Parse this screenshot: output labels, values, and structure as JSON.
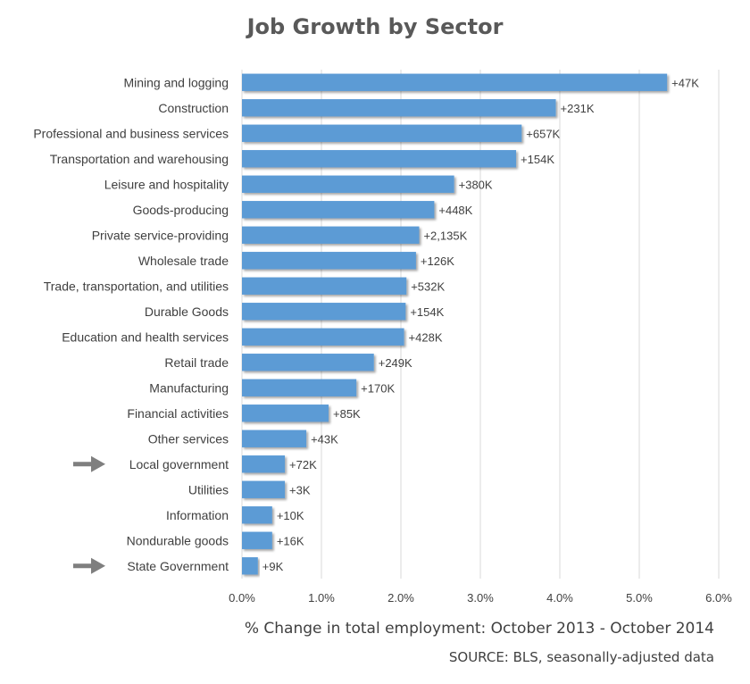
{
  "chart_data": {
    "type": "bar",
    "orientation": "horizontal",
    "title": "Job Growth by Sector",
    "xlabel": "% Change in total employment: October 2013 - October 2014",
    "source": "SOURCE: BLS, seasonally-adjusted data",
    "xlim": [
      0,
      6
    ],
    "xticks": [
      "0.0%",
      "1.0%",
      "2.0%",
      "3.0%",
      "4.0%",
      "5.0%",
      "6.0%"
    ],
    "grid": true,
    "bar_color": "#5b9bd5",
    "categories": [
      "Mining and logging",
      "Construction",
      "Professional and business services",
      "Transportation and warehousing",
      "Leisure and hospitality",
      "Goods-producing",
      "Private service-providing",
      "Wholesale trade",
      "Trade, transportation, and utilities",
      "Durable Goods",
      "Education and health services",
      "Retail trade",
      "Manufacturing",
      "Financial activities",
      "Other services",
      "Local government",
      "Utilities",
      "Information",
      "Nondurable goods",
      "State Government"
    ],
    "values": [
      5.35,
      3.95,
      3.52,
      3.45,
      2.67,
      2.42,
      2.23,
      2.19,
      2.07,
      2.06,
      2.04,
      1.66,
      1.44,
      1.09,
      0.81,
      0.54,
      0.54,
      0.38,
      0.38,
      0.2
    ],
    "value_labels": [
      "+47K",
      "+231K",
      "+657K",
      "+154K",
      "+380K",
      "+448K",
      "+2,135K",
      "+126K",
      "+532K",
      "+154K",
      "+428K",
      "+249K",
      "+170K",
      "+85K",
      "+43K",
      "+72K",
      "+3K",
      "+10K",
      "+16K",
      "+9K"
    ],
    "highlighted": [
      "Local government",
      "State Government"
    ],
    "highlight_marker": "arrow-icon"
  }
}
